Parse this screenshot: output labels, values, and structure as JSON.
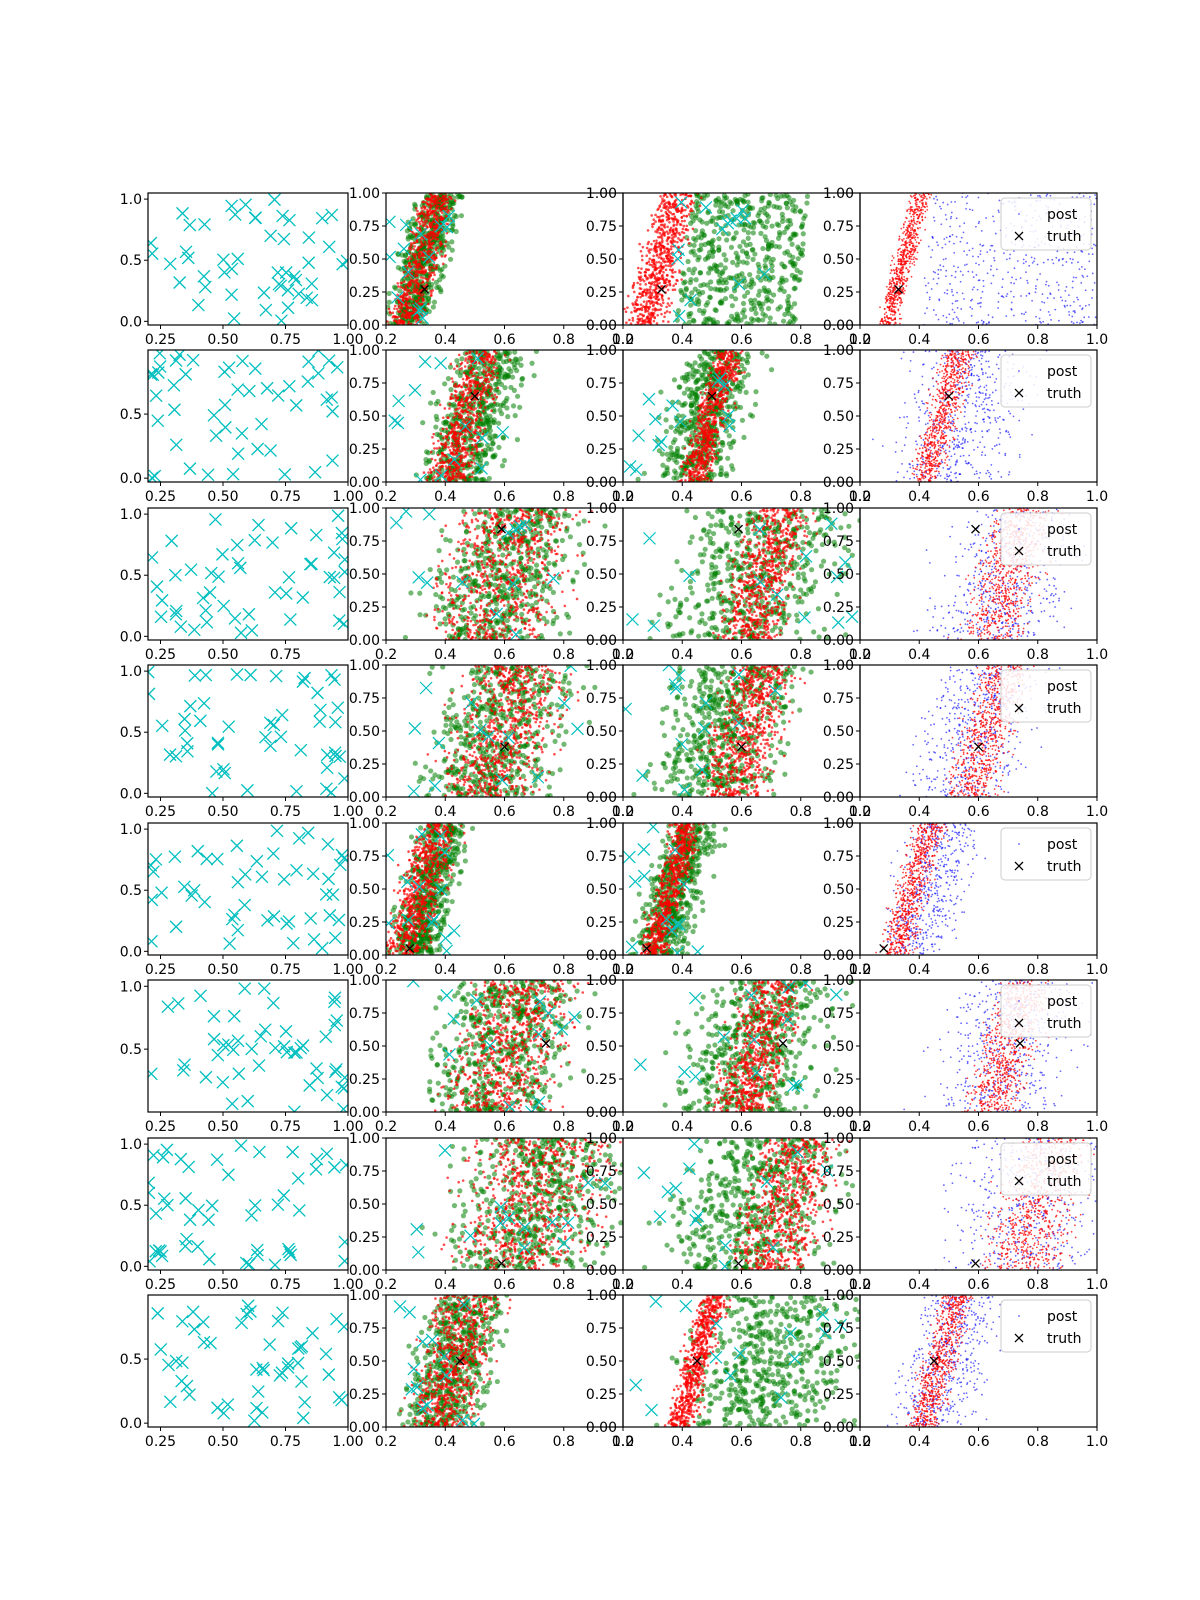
{
  "figure": {
    "description_visible": "8 x 4 grid of scatter subplots",
    "colors": {
      "cyan": "#00bfbf",
      "red": "#ff0000",
      "green": "#008000",
      "blue": "#0000ff",
      "black": "#000000"
    }
  },
  "chart_data": [
    {
      "row": 1,
      "col": 1,
      "type": "scatter",
      "xlim": [
        0.2,
        1.0
      ],
      "ylim": [
        -0.03,
        1.05
      ],
      "xticks": [
        "0.25",
        "0.50",
        "0.75",
        "1.00"
      ],
      "yticks": [
        "0.0",
        "0.5",
        "1.0"
      ],
      "series": [],
      "truth": null,
      "legend": null
    },
    {
      "row": 1,
      "col": 2,
      "type": "scatter",
      "xlim": [
        0.2,
        1.0
      ],
      "ylim": [
        0,
        1
      ],
      "xticks": [
        "0.2",
        "0.4",
        "0.6",
        "0.8",
        "1.0"
      ],
      "yticks": [
        "0.00",
        "0.25",
        "0.50",
        "0.75",
        "1.00"
      ],
      "truth": [
        0.33,
        0.27
      ],
      "band": {
        "red": [
          0.2,
          0.32,
          0.38
        ],
        "green": [
          0.2,
          0.33,
          0.42
        ]
      },
      "legend": null
    },
    {
      "row": 1,
      "col": 3,
      "type": "scatter",
      "xlim": [
        0.2,
        1.0
      ],
      "ylim": [
        0,
        1
      ],
      "xticks": [
        "0.2",
        "0.4",
        "0.6",
        "0.8",
        "1.0"
      ],
      "yticks": [
        "0.00",
        "0.25",
        "0.50",
        "0.75",
        "1.00"
      ],
      "truth": [
        0.33,
        0.27
      ],
      "band": {
        "red": [
          0.2,
          0.33,
          0.4
        ],
        "green": [
          0.38,
          0.78,
          0.0
        ]
      },
      "legend": null
    },
    {
      "row": 1,
      "col": 4,
      "type": "scatter",
      "xlim": [
        0.2,
        1.0
      ],
      "ylim": [
        0,
        1
      ],
      "xticks": [
        "0.2",
        "0.4",
        "0.6",
        "0.8",
        "1.0"
      ],
      "yticks": [
        "0.00",
        "0.25",
        "0.50",
        "0.75",
        "1.00"
      ],
      "truth": [
        0.33,
        0.27
      ],
      "band": {
        "red": [
          0.3,
          0.35,
          0.4
        ],
        "blue": [
          0.4,
          1.0,
          0.0
        ]
      },
      "legend": [
        "post",
        "truth"
      ]
    },
    {
      "row": 2,
      "col": 1,
      "type": "scatter",
      "xlim": [
        0.2,
        1.0
      ],
      "ylim": [
        -0.03,
        1.0
      ],
      "xticks": [
        "0.25",
        "0.50",
        "0.75",
        "1.00"
      ],
      "yticks": [
        "0.0",
        "0.5"
      ],
      "truth": null,
      "legend": null
    },
    {
      "row": 2,
      "col": 2,
      "type": "scatter",
      "xlim": [
        0.2,
        1.0
      ],
      "ylim": [
        0,
        1
      ],
      "xticks": [
        "0.2",
        "0.4",
        "0.6",
        "0.8",
        "1.0"
      ],
      "yticks": [
        "0.00",
        "0.25",
        "0.50",
        "0.75",
        "1.00"
      ],
      "truth": [
        0.5,
        0.65
      ],
      "band": {
        "red": [
          0.35,
          0.47,
          0.58
        ],
        "green": [
          0.22,
          0.5,
          0.6
        ]
      },
      "legend": null
    },
    {
      "row": 2,
      "col": 3,
      "type": "scatter",
      "xlim": [
        0.2,
        1.0
      ],
      "ylim": [
        0,
        1
      ],
      "xticks": [
        "0.2",
        "0.4",
        "0.6",
        "0.8",
        "1.0"
      ],
      "yticks": [
        "0.00",
        "0.25",
        "0.50",
        "0.75",
        "1.00"
      ],
      "truth": [
        0.5,
        0.65
      ],
      "band": {
        "red": [
          0.42,
          0.5,
          0.58
        ],
        "green": [
          0.2,
          0.48,
          0.58
        ]
      },
      "legend": null
    },
    {
      "row": 2,
      "col": 4,
      "type": "scatter",
      "xlim": [
        0.2,
        1.0
      ],
      "ylim": [
        0,
        1
      ],
      "xticks": [
        "0.2",
        "0.4",
        "0.6",
        "0.8",
        "1.0"
      ],
      "yticks": [
        "0.00",
        "0.25",
        "0.50",
        "0.75",
        "1.00"
      ],
      "truth": [
        0.5,
        0.65
      ],
      "band": {
        "red": [
          0.4,
          0.48,
          0.56
        ],
        "blue": [
          0.2,
          0.55,
          0.8
        ]
      },
      "legend": [
        "post",
        "truth"
      ]
    },
    {
      "row": 3,
      "col": 1,
      "type": "scatter",
      "xlim": [
        0.2,
        1.0
      ],
      "ylim": [
        -0.03,
        1.05
      ],
      "xticks": [
        "0.25",
        "0.50",
        "0.75"
      ],
      "yticks": [
        "0.0",
        "0.5",
        "1.0"
      ],
      "truth": null,
      "legend": null
    },
    {
      "row": 3,
      "col": 2,
      "type": "scatter",
      "xlim": [
        0.2,
        1.0
      ],
      "ylim": [
        0,
        1
      ],
      "xticks": [
        "0.2",
        "0.4",
        "0.6",
        "0.8",
        "1.0"
      ],
      "yticks": [
        "0.00",
        "0.25",
        "0.50",
        "0.75",
        "1.00"
      ],
      "truth": [
        0.59,
        0.84
      ],
      "band": {
        "red": [
          0.25,
          0.6,
          0.85
        ],
        "green": [
          0.2,
          0.6,
          0.85
        ]
      },
      "legend": null
    },
    {
      "row": 3,
      "col": 3,
      "type": "scatter",
      "xlim": [
        0.2,
        1.0
      ],
      "ylim": [
        0,
        1
      ],
      "xticks": [
        "0.2",
        "0.4",
        "0.6",
        "0.8",
        "1.0"
      ],
      "yticks": [
        "0.00",
        "0.25",
        "0.50",
        "0.75",
        "1.00"
      ],
      "truth": [
        0.59,
        0.84
      ],
      "band": {
        "red": [
          0.5,
          0.68,
          0.82
        ],
        "green": [
          0.2,
          0.65,
          1.0
        ]
      },
      "legend": null
    },
    {
      "row": 3,
      "col": 4,
      "type": "scatter",
      "xlim": [
        0.2,
        1.0
      ],
      "ylim": [
        0,
        1
      ],
      "xticks": [
        "0.2",
        "0.4",
        "0.6",
        "0.8",
        "1.0"
      ],
      "yticks": [
        "0.00",
        "0.25",
        "0.50",
        "0.75",
        "1.00"
      ],
      "truth": [
        0.59,
        0.84
      ],
      "band": {
        "red": [
          0.5,
          0.7,
          0.82
        ],
        "blue": [
          0.2,
          0.7,
          0.85
        ]
      },
      "legend": [
        "post",
        "truth"
      ]
    },
    {
      "row": 4,
      "col": 1,
      "type": "scatter",
      "xlim": [
        0.2,
        1.0
      ],
      "ylim": [
        -0.03,
        1.05
      ],
      "xticks": [
        "0.25",
        "0.50",
        "0.75",
        "1.00"
      ],
      "yticks": [
        "0.0",
        "0.5",
        "1.0"
      ],
      "truth": null,
      "legend": null
    },
    {
      "row": 4,
      "col": 2,
      "type": "scatter",
      "xlim": [
        0.2,
        1.0
      ],
      "ylim": [
        0,
        1
      ],
      "xticks": [
        "0.2",
        "0.4",
        "0.6",
        "0.8",
        "1.0"
      ],
      "yticks": [
        "0.00",
        "0.25",
        "0.50",
        "0.75",
        "1.00"
      ],
      "truth": [
        0.6,
        0.38
      ],
      "band": {
        "red": [
          0.3,
          0.6,
          0.8
        ],
        "green": [
          0.2,
          0.58,
          0.85
        ]
      },
      "legend": null
    },
    {
      "row": 4,
      "col": 3,
      "type": "scatter",
      "xlim": [
        0.2,
        1.0
      ],
      "ylim": [
        0,
        1
      ],
      "xticks": [
        "0.2",
        "0.4",
        "0.6",
        "0.8",
        "1.0"
      ],
      "yticks": [
        "0.00",
        "0.25",
        "0.50",
        "0.75",
        "1.00"
      ],
      "truth": [
        0.6,
        0.38
      ],
      "band": {
        "red": [
          0.45,
          0.62,
          0.78
        ],
        "green": [
          0.2,
          0.55,
          0.8
        ]
      },
      "legend": null
    },
    {
      "row": 4,
      "col": 4,
      "type": "scatter",
      "xlim": [
        0.2,
        1.0
      ],
      "ylim": [
        0,
        1
      ],
      "xticks": [
        "0.2",
        "0.4",
        "0.6",
        "0.8",
        "1.0"
      ],
      "yticks": [
        "0.00",
        "0.25",
        "0.50",
        "0.75",
        "1.00"
      ],
      "truth": [
        0.6,
        0.38
      ],
      "band": {
        "red": [
          0.5,
          0.63,
          0.75
        ],
        "blue": [
          0.2,
          0.6,
          0.75
        ]
      },
      "legend": [
        "post",
        "truth"
      ]
    },
    {
      "row": 5,
      "col": 1,
      "type": "scatter",
      "xlim": [
        0.2,
        1.0
      ],
      "ylim": [
        -0.03,
        1.05
      ],
      "xticks": [
        "0.25",
        "0.50",
        "0.75",
        "1.00"
      ],
      "yticks": [
        "0.0",
        "0.5",
        "1.0"
      ],
      "truth": null,
      "legend": null
    },
    {
      "row": 5,
      "col": 2,
      "type": "scatter",
      "xlim": [
        0.2,
        1.0
      ],
      "ylim": [
        0,
        1
      ],
      "xticks": [
        "0.2",
        "0.4",
        "0.6",
        "0.8",
        "1.0"
      ],
      "yticks": [
        "0.00",
        "0.25",
        "0.50",
        "0.75",
        "1.00"
      ],
      "truth": [
        0.28,
        0.05
      ],
      "band": {
        "red": [
          0.2,
          0.32,
          0.42
        ],
        "green": [
          0.2,
          0.35,
          0.46
        ]
      },
      "legend": null
    },
    {
      "row": 5,
      "col": 3,
      "type": "scatter",
      "xlim": [
        0.2,
        1.0
      ],
      "ylim": [
        0,
        1
      ],
      "xticks": [
        "0.2",
        "0.4",
        "0.6",
        "0.8",
        "1.0"
      ],
      "yticks": [
        "0.00",
        "0.25",
        "0.50",
        "0.75",
        "1.00"
      ],
      "truth": [
        0.28,
        0.05
      ],
      "band": {
        "red": [
          0.3,
          0.36,
          0.44
        ],
        "green": [
          0.2,
          0.38,
          0.48
        ]
      },
      "legend": null
    },
    {
      "row": 5,
      "col": 4,
      "type": "scatter",
      "xlim": [
        0.2,
        1.0
      ],
      "ylim": [
        0,
        1
      ],
      "xticks": [
        "0.2",
        "0.4",
        "0.6",
        "0.8",
        "1.0"
      ],
      "yticks": [
        "0.00",
        "0.25",
        "0.50",
        "0.75",
        "1.00"
      ],
      "truth": [
        0.28,
        0.05
      ],
      "band": {
        "red": [
          0.3,
          0.38,
          0.46
        ],
        "blue": [
          0.2,
          0.44,
          0.55
        ]
      },
      "legend": [
        "post",
        "truth"
      ]
    },
    {
      "row": 6,
      "col": 1,
      "type": "scatter",
      "xlim": [
        0.2,
        1.0
      ],
      "ylim": [
        0.0,
        1.05
      ],
      "xticks": [
        "0.25",
        "0.50",
        "0.75",
        "1.00"
      ],
      "yticks": [
        "0.5",
        "1.0"
      ],
      "truth": null,
      "legend": null
    },
    {
      "row": 6,
      "col": 2,
      "type": "scatter",
      "xlim": [
        0.2,
        1.0
      ],
      "ylim": [
        0,
        1
      ],
      "xticks": [
        "0.2",
        "0.4",
        "0.6",
        "0.8",
        "1.0"
      ],
      "yticks": [
        "0.00",
        "0.25",
        "0.50",
        "0.75",
        "1.00"
      ],
      "truth": [
        0.74,
        0.52
      ],
      "band": {
        "red": [
          0.3,
          0.62,
          0.82
        ],
        "green": [
          0.2,
          0.6,
          0.85
        ]
      },
      "legend": null
    },
    {
      "row": 6,
      "col": 3,
      "type": "scatter",
      "xlim": [
        0.2,
        1.0
      ],
      "ylim": [
        0,
        1
      ],
      "xticks": [
        "0.2",
        "0.4",
        "0.6",
        "0.8",
        "1.0"
      ],
      "yticks": [
        "0.00",
        "0.25",
        "0.50",
        "0.75",
        "1.00"
      ],
      "truth": [
        0.74,
        0.52
      ],
      "band": {
        "red": [
          0.5,
          0.66,
          0.8
        ],
        "green": [
          0.25,
          0.65,
          0.92
        ]
      },
      "legend": null
    },
    {
      "row": 6,
      "col": 4,
      "type": "scatter",
      "xlim": [
        0.2,
        1.0
      ],
      "ylim": [
        0,
        1
      ],
      "xticks": [
        "0.2",
        "0.4",
        "0.6",
        "0.8",
        "1.0"
      ],
      "yticks": [
        "0.00",
        "0.25",
        "0.50",
        "0.75",
        "1.00"
      ],
      "truth": [
        0.74,
        0.52
      ],
      "band": {
        "red": [
          0.55,
          0.7,
          0.83
        ],
        "blue": [
          0.2,
          0.7,
          0.85
        ]
      },
      "legend": [
        "post",
        "truth"
      ]
    },
    {
      "row": 7,
      "col": 1,
      "type": "scatter",
      "xlim": [
        0.2,
        1.0
      ],
      "ylim": [
        -0.03,
        1.05
      ],
      "xticks": [
        "0.25",
        "0.50",
        "0.75",
        "1.00"
      ],
      "yticks": [
        "0.0",
        "0.5",
        "1.0"
      ],
      "truth": null,
      "legend": null
    },
    {
      "row": 7,
      "col": 2,
      "type": "scatter",
      "xlim": [
        0.2,
        1.0
      ],
      "ylim": [
        0,
        1
      ],
      "xticks": [
        "0.2",
        "0.4",
        "0.6",
        "0.8",
        "1.0"
      ],
      "yticks": [
        "0.00",
        "0.25",
        "0.50",
        "0.75",
        "1.00"
      ],
      "truth": [
        0.59,
        0.05
      ],
      "band": {
        "red": [
          0.3,
          0.7,
          1.0
        ],
        "green": [
          0.25,
          0.7,
          1.0
        ]
      },
      "legend": null
    },
    {
      "row": 7,
      "col": 3,
      "type": "scatter",
      "xlim": [
        0.2,
        1.0
      ],
      "ylim": [
        0,
        1
      ],
      "xticks": [
        "0.2",
        "0.4",
        "0.6",
        "0.8",
        "1.0"
      ],
      "yticks": [
        "0.00",
        "0.25",
        "0.50",
        "0.75",
        "1.00"
      ],
      "truth": [
        0.59,
        0.05
      ],
      "band": {
        "red": [
          0.6,
          0.75,
          1.0
        ],
        "green": [
          0.25,
          0.65,
          1.0
        ]
      },
      "legend": null
    },
    {
      "row": 7,
      "col": 4,
      "type": "scatter",
      "xlim": [
        0.2,
        1.0
      ],
      "ylim": [
        0,
        1
      ],
      "xticks": [
        "0.2",
        "0.4",
        "0.6",
        "0.8",
        "1.0"
      ],
      "yticks": [
        "0.00",
        "0.25",
        "0.50",
        "0.75",
        "1.00"
      ],
      "truth": [
        0.59,
        0.05
      ],
      "band": {
        "red": [
          0.6,
          0.8,
          1.0
        ],
        "blue": [
          0.2,
          0.78,
          0.98
        ]
      },
      "legend": [
        "post",
        "truth"
      ]
    },
    {
      "row": 8,
      "col": 1,
      "type": "scatter",
      "xlim": [
        0.2,
        1.0
      ],
      "ylim": [
        -0.03,
        1.0
      ],
      "xticks": [
        "0.25",
        "0.50",
        "0.75",
        "1.00"
      ],
      "yticks": [
        "0.0",
        "0.5"
      ],
      "truth": null,
      "legend": null
    },
    {
      "row": 8,
      "col": 2,
      "type": "scatter",
      "xlim": [
        0.2,
        1.0
      ],
      "ylim": [
        0,
        1
      ],
      "xticks": [
        "0.2",
        "0.4",
        "0.6",
        "0.8",
        "1.0"
      ],
      "yticks": [
        "0.00",
        "0.25",
        "0.50",
        "0.75",
        "1.00"
      ],
      "truth": [
        0.45,
        0.5
      ],
      "band": {
        "red": [
          0.2,
          0.43,
          0.54
        ],
        "green": [
          0.2,
          0.43,
          0.58
        ]
      },
      "legend": null
    },
    {
      "row": 8,
      "col": 3,
      "type": "scatter",
      "xlim": [
        0.2,
        1.0
      ],
      "ylim": [
        0,
        1
      ],
      "xticks": [
        "0.2",
        "0.4",
        "0.6",
        "0.8",
        "1.0"
      ],
      "yticks": [
        "0.00",
        "0.25",
        "0.50",
        "0.75",
        "1.00"
      ],
      "truth": [
        0.45,
        0.5
      ],
      "band": {
        "red": [
          0.38,
          0.45,
          0.52
        ],
        "green": [
          0.2,
          0.7,
          0.98
        ]
      },
      "legend": null
    },
    {
      "row": 8,
      "col": 4,
      "type": "scatter",
      "xlim": [
        0.2,
        1.0
      ],
      "ylim": [
        0,
        1
      ],
      "xticks": [
        "0.2",
        "0.4",
        "0.6",
        "0.8",
        "1.0"
      ],
      "yticks": [
        "0.00",
        "0.25",
        "0.50",
        "0.75",
        "1.00"
      ],
      "truth": [
        0.45,
        0.5
      ],
      "band": {
        "red": [
          0.4,
          0.47,
          0.56
        ],
        "blue": [
          0.2,
          0.5,
          0.6
        ]
      },
      "legend": [
        "post",
        "truth"
      ]
    }
  ]
}
